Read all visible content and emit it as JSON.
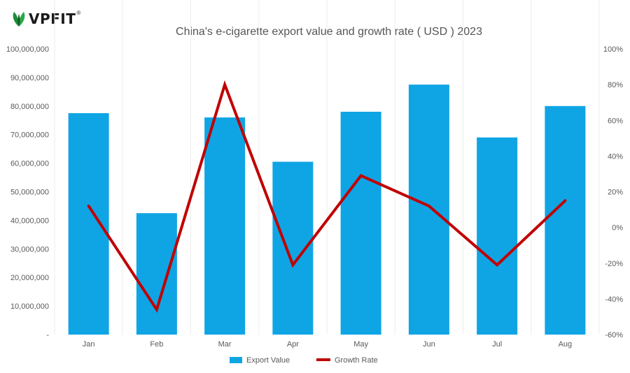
{
  "brand": {
    "name": "VPFIT",
    "mark": "®"
  },
  "chart_data": {
    "type": "bar",
    "title": "China's e-cigarette export value and growth rate ( USD ) 2023",
    "categories": [
      "Jan",
      "Feb",
      "Mar",
      "Apr",
      "May",
      "Jun",
      "Jul",
      "Aug"
    ],
    "series": [
      {
        "name": "Export Value",
        "type": "bar",
        "axis": "left",
        "values": [
          77500000,
          42500000,
          76000000,
          60500000,
          78000000,
          87500000,
          69000000,
          80000000
        ],
        "color": "#0fa5e4"
      },
      {
        "name": "Growth Rate",
        "type": "line",
        "axis": "right",
        "values": [
          12,
          -46,
          80,
          -21,
          29,
          12,
          -21,
          15
        ],
        "color": "#c00000"
      }
    ],
    "y_left": {
      "ylim": [
        0,
        100000000
      ],
      "ticks": [
        0,
        10000000,
        20000000,
        30000000,
        40000000,
        50000000,
        60000000,
        70000000,
        80000000,
        90000000,
        100000000
      ],
      "tick_labels": [
        "-",
        "10,000,000",
        "20,000,000",
        "30,000,000",
        "40,000,000",
        "50,000,000",
        "60,000,000",
        "70,000,000",
        "80,000,000",
        "90,000,000",
        "100,000,000"
      ]
    },
    "y_right": {
      "ylim": [
        -60,
        100
      ],
      "ticks": [
        -60,
        -40,
        -20,
        0,
        20,
        40,
        60,
        80,
        100
      ],
      "tick_labels": [
        "-60%",
        "-40%",
        "-20%",
        "0%",
        "20%",
        "40%",
        "60%",
        "80%",
        "100%"
      ]
    },
    "grid": "vertical",
    "legend_position": "bottom"
  }
}
